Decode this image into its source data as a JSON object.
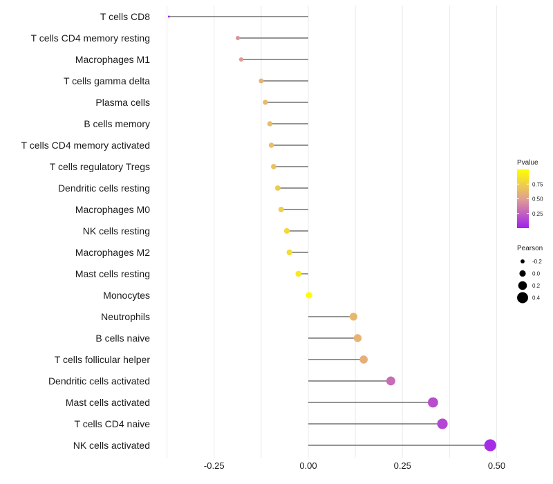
{
  "chart_data": {
    "type": "lollipop",
    "categories": [
      "T cells CD8",
      "T cells CD4 memory resting",
      "Macrophages M1",
      "T cells gamma delta",
      "Plasma cells",
      "B cells memory",
      "T cells CD4 memory activated",
      "T cells regulatory  Tregs ",
      "Dendritic cells resting",
      "Macrophages M0",
      "NK cells resting",
      "Macrophages M2",
      "Mast cells resting",
      "Monocytes",
      "Neutrophils",
      "B cells naive",
      "T cells follicular helper",
      "Dendritic cells activated",
      "Mast cells activated",
      "T cells CD4 naive",
      "NK cells activated"
    ],
    "pearson": [
      -0.37,
      -0.187,
      -0.178,
      -0.125,
      -0.114,
      -0.102,
      -0.098,
      -0.092,
      -0.081,
      -0.072,
      -0.057,
      -0.05,
      -0.026,
      0.002,
      0.12,
      0.131,
      0.147,
      0.219,
      0.331,
      0.356,
      0.483
    ],
    "pvalue": [
      0.03,
      0.45,
      0.48,
      0.6,
      0.63,
      0.65,
      0.66,
      0.67,
      0.72,
      0.74,
      0.8,
      0.82,
      0.88,
      0.99,
      0.62,
      0.6,
      0.58,
      0.3,
      0.18,
      0.15,
      0.05
    ],
    "xlabel": "",
    "ylabel": "",
    "xlim": [
      -0.375,
      0.51
    ],
    "xticks": [
      -0.25,
      0.0,
      0.25,
      0.5
    ],
    "xtick_labels": [
      "-0.25",
      "0.00",
      "0.25",
      "0.50"
    ],
    "color_legend": {
      "title": "Pvalue",
      "range": [
        0.0,
        1.0
      ],
      "ticks": [
        0.75,
        0.5,
        0.25
      ],
      "tick_labels": [
        "0.75",
        "0.50",
        "0.25"
      ],
      "color_low": "#a020f0",
      "color_mid": "#e0a090",
      "color_high": "#ffff00"
    },
    "size_legend": {
      "title": "Pearson",
      "values": [
        -0.2,
        0.0,
        0.2,
        0.4
      ],
      "labels": [
        "-0.2",
        "0.0",
        "0.2",
        "0.4"
      ]
    },
    "segment_color": "#555555",
    "grid": true,
    "legend_position": "right"
  }
}
